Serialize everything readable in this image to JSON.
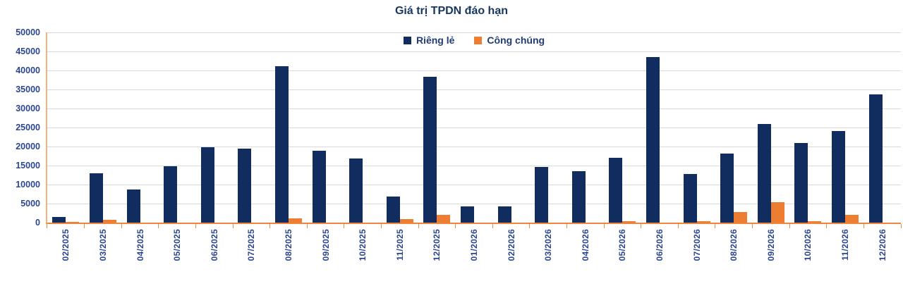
{
  "chart_data": {
    "type": "bar",
    "title": "Giá trị TPDN đáo hạn",
    "legend_position": "top-center",
    "grid": true,
    "ylim": [
      0,
      50000
    ],
    "ytick_step": 5000,
    "yticks": [
      0,
      5000,
      10000,
      15000,
      20000,
      25000,
      30000,
      35000,
      40000,
      45000,
      50000
    ],
    "categories": [
      "02/2025",
      "03/2025",
      "04/2025",
      "05/2025",
      "06/2025",
      "07/2025",
      "08/2025",
      "09/2025",
      "10/2025",
      "11/2025",
      "12/2025",
      "01/2026",
      "02/2026",
      "03/2026",
      "04/2026",
      "05/2026",
      "06/2026",
      "07/2026",
      "08/2026",
      "09/2026",
      "10/2026",
      "11/2026",
      "12/2026"
    ],
    "series": [
      {
        "name": "Riêng lẻ",
        "color": "#112D5F",
        "values": [
          1400,
          13000,
          8700,
          14900,
          19800,
          19400,
          41100,
          18800,
          16800,
          6900,
          38300,
          4200,
          4300,
          14600,
          13500,
          17000,
          43600,
          12700,
          18100,
          25900,
          20900,
          24100,
          33700
        ]
      },
      {
        "name": "Công chúng",
        "color": "#ED7D31",
        "values": [
          200,
          800,
          0,
          0,
          0,
          0,
          1100,
          0,
          0,
          1000,
          2000,
          0,
          0,
          0,
          0,
          300,
          0,
          300,
          2700,
          5300,
          300,
          2100,
          0
        ]
      }
    ],
    "colors": {
      "title_text": "#17375E",
      "axis_text": "#2A4690",
      "legend_text": "#1F3B78",
      "gridline": "#D9D9D9",
      "y_axis_line": "#F5B183",
      "x_axis_line": "#EE8640"
    }
  }
}
